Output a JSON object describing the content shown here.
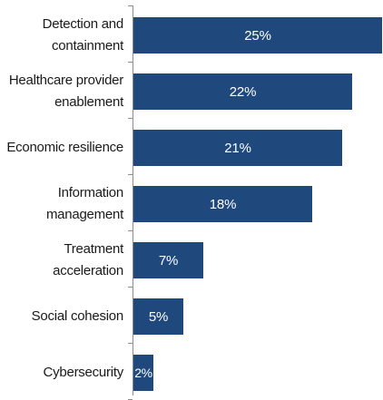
{
  "chart_data": {
    "type": "bar",
    "orientation": "horizontal",
    "categories": [
      "Detection and\ncontainment",
      "Healthcare provider\nenablement",
      "Economic resilience",
      "Information\nmanagement",
      "Treatment\nacceleration",
      "Social cohesion",
      "Cybersecurity"
    ],
    "values": [
      25,
      22,
      21,
      18,
      7,
      5,
      2
    ],
    "value_labels": [
      "25%",
      "22%",
      "21%",
      "18%",
      "7%",
      "5%",
      "2%"
    ],
    "xlim": [
      0,
      25
    ],
    "grid": false,
    "colors": {
      "bar": "#1f497d",
      "bar_label": "#ffffff",
      "axis": "#8c8c8c",
      "text": "#1a1a1a"
    }
  }
}
